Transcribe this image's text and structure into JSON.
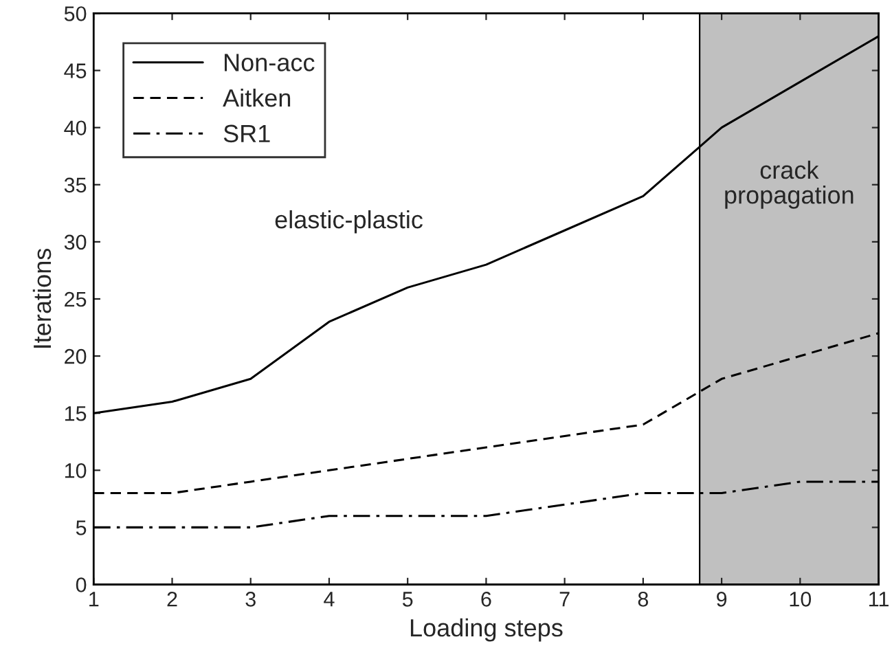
{
  "chart_data": {
    "type": "line",
    "xlabel": "Loading steps",
    "ylabel": "Iterations",
    "x": [
      1,
      2,
      3,
      4,
      5,
      6,
      7,
      8,
      9,
      10,
      11
    ],
    "series": [
      {
        "name": "Non-acc",
        "color": "#000000",
        "line_style": "solid",
        "values": [
          15,
          16,
          18,
          23,
          26,
          28,
          31,
          34,
          40,
          44,
          48
        ]
      },
      {
        "name": "Aitken",
        "color": "#000000",
        "line_style": "dashed",
        "values": [
          8,
          8,
          9,
          10,
          11,
          12,
          13,
          14,
          18,
          20,
          22
        ]
      },
      {
        "name": "SR1",
        "color": "#000000",
        "line_style": "dashdot",
        "values": [
          5,
          5,
          5,
          6,
          6,
          6,
          7,
          8,
          8,
          9,
          9
        ]
      }
    ],
    "xlim": [
      1,
      11
    ],
    "xticks": [
      1,
      2,
      3,
      4,
      5,
      6,
      7,
      8,
      9,
      10,
      11
    ],
    "ylim": [
      0,
      50
    ],
    "yticks": [
      0,
      5,
      10,
      15,
      20,
      25,
      30,
      35,
      40,
      45,
      50
    ],
    "bands": [
      {
        "axis": "x",
        "from": 8.72,
        "to": 11,
        "label": "crack\npropagation",
        "color": "#c0c0c0"
      }
    ],
    "annotations": [
      "elastic-plastic"
    ],
    "legend": "top left",
    "grid": false,
    "marker": "none"
  }
}
